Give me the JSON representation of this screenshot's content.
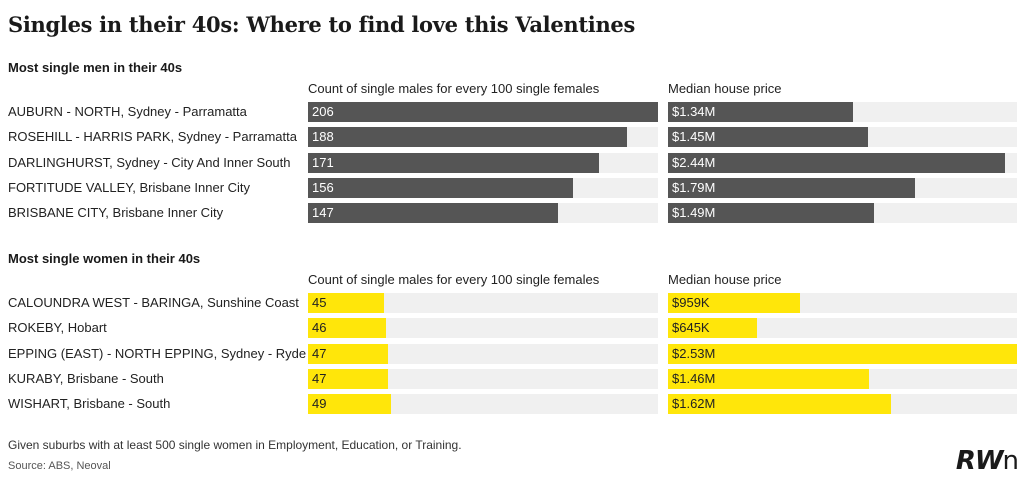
{
  "title": "Singles in their 40s: Where to find love this Valentines",
  "footnote": "Given suburbs with at least 500 single women in Employment, Education, or Training.",
  "source": "Source: ABS, Neoval",
  "logo": {
    "main": "RW",
    "tail": "n"
  },
  "colors": {
    "men_bar": "#555555",
    "women_bar": "#ffe60a",
    "track": "#f0f0f0"
  },
  "chart_data": [
    {
      "type": "bar",
      "title": "Most single men in their 40s",
      "col1_header": "Count of single males for every 100 single females",
      "col2_header": "Median house price",
      "col1_max": 206,
      "col2_max": 2.53,
      "rows": [
        {
          "suburb": "AUBURN - NORTH",
          "region": ", Sydney - Parramatta",
          "ratio": 206,
          "price": 1.34,
          "price_label": "$1.34M"
        },
        {
          "suburb": "ROSEHILL - HARRIS PARK",
          "region": ", Sydney - Parramatta",
          "ratio": 188,
          "price": 1.45,
          "price_label": "$1.45M"
        },
        {
          "suburb": "DARLINGHURST",
          "region": ", Sydney - City And Inner South",
          "ratio": 171,
          "price": 2.44,
          "price_label": "$2.44M"
        },
        {
          "suburb": "FORTITUDE VALLEY",
          "region": ", Brisbane Inner City",
          "ratio": 156,
          "price": 1.79,
          "price_label": "$1.79M"
        },
        {
          "suburb": "BRISBANE CITY",
          "region": ", Brisbane Inner City",
          "ratio": 147,
          "price": 1.49,
          "price_label": "$1.49M"
        }
      ]
    },
    {
      "type": "bar",
      "title": "Most single women in their 40s",
      "col1_header": "Count of single males for every 100 single females",
      "col2_header": "Median house price",
      "col1_max": 206,
      "col2_max": 2.53,
      "rows": [
        {
          "suburb": "CALOUNDRA WEST - BARINGA",
          "region": ", Sunshine Coast",
          "ratio": 45,
          "price": 0.959,
          "price_label": "$959K"
        },
        {
          "suburb": "ROKEBY",
          "region": ", Hobart",
          "ratio": 46,
          "price": 0.645,
          "price_label": "$645K"
        },
        {
          "suburb": "EPPING (EAST) - NORTH EPPING",
          "region": ", Sydney - Ryde",
          "ratio": 47,
          "price": 2.53,
          "price_label": "$2.53M"
        },
        {
          "suburb": "KURABY",
          "region": ", Brisbane - South",
          "ratio": 47,
          "price": 1.46,
          "price_label": "$1.46M"
        },
        {
          "suburb": "WISHART",
          "region": ", Brisbane - South",
          "ratio": 49,
          "price": 1.62,
          "price_label": "$1.62M"
        }
      ]
    }
  ]
}
